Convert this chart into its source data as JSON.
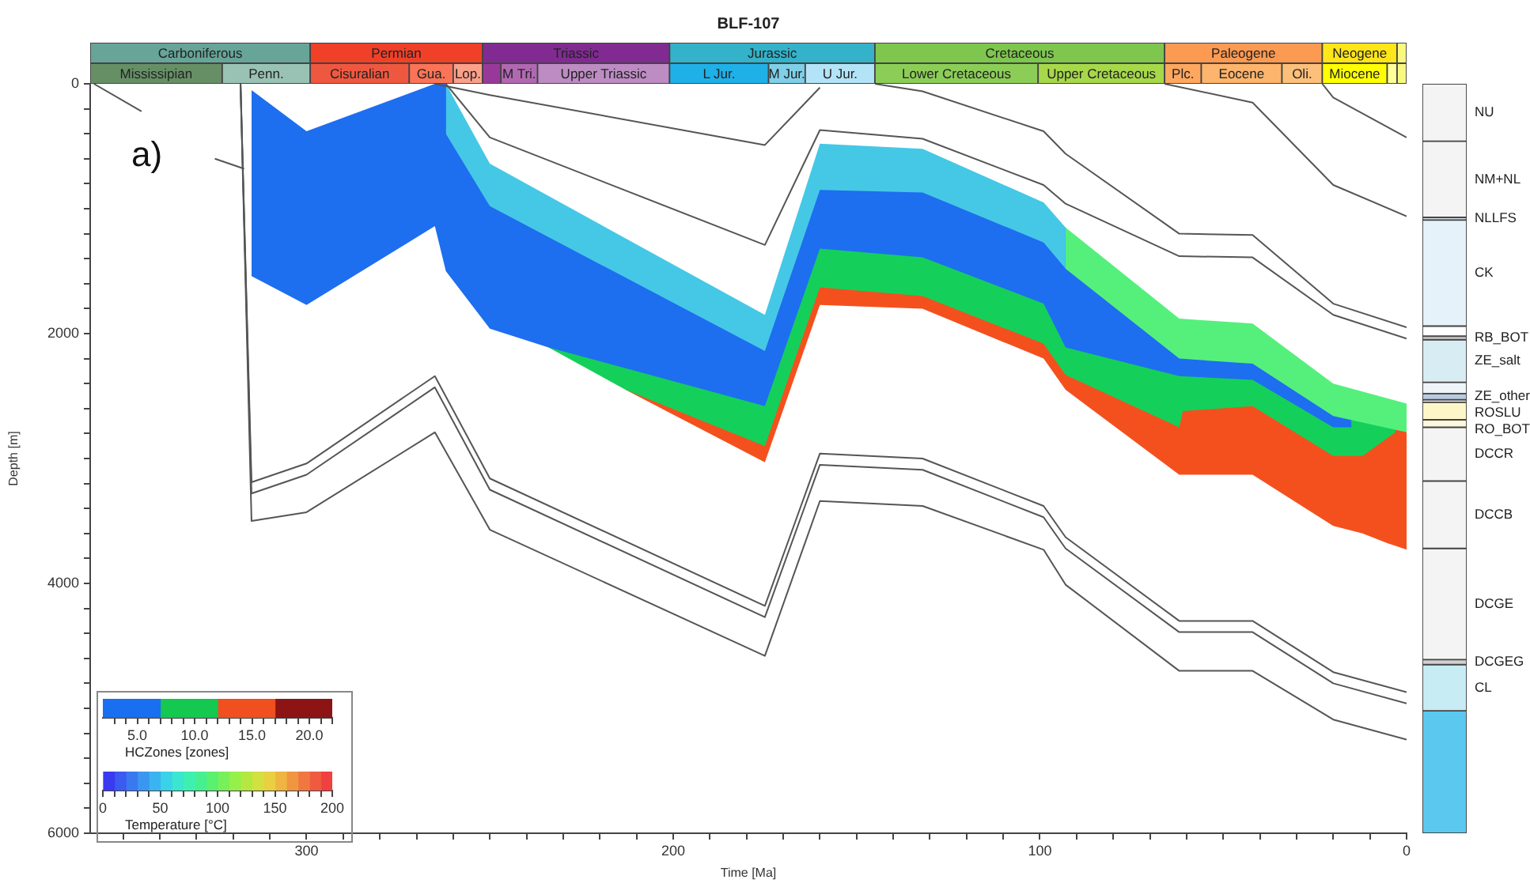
{
  "chart_data": [
    {
      "type": "bar",
      "title": "BLF-107",
      "orientation": "horizontal",
      "stacked": true,
      "categories": [
        null,
        null
      ],
      "xlim": [
        359,
        0
      ],
      "xticks": [
        300,
        200,
        100,
        0
      ],
      "tick_labels": false,
      "series": [
        {
          "color": "#f9f97f",
          "values": [
            2.6,
            null
          ]
        },
        {
          "name": "Neogene",
          "color": "#ffe619",
          "values": [
            20.4,
            null
          ]
        },
        {
          "name": "Paleogene",
          "color": "#fd9a52",
          "values": [
            43,
            null
          ]
        },
        {
          "name": "Cretaceous",
          "color": "#7fc64e",
          "values": [
            79,
            null
          ]
        },
        {
          "name": "Jurassic",
          "color": "#34b2c9",
          "values": [
            56,
            null
          ]
        },
        {
          "name": "Triassic",
          "color": "#812b92",
          "values": [
            51,
            null
          ]
        },
        {
          "name": "Permian",
          "color": "#f04028",
          "values": [
            47,
            null
          ]
        },
        {
          "name": "Carboniferous",
          "color": "#67a599",
          "values": [
            60,
            null
          ]
        },
        {
          "color": "#f9f97f",
          "values": [
            null,
            2.6
          ]
        },
        {
          "color": "#ffff99",
          "values": [
            null,
            2.7
          ]
        },
        {
          "name": "Miocene",
          "color": "#ffff00",
          "values": [
            null,
            17.7
          ]
        },
        {
          "name": "Oli.",
          "color": "#fdc07a",
          "values": [
            null,
            11
          ]
        },
        {
          "name": "Eocene",
          "color": "#fdb46c",
          "values": [
            null,
            22
          ]
        },
        {
          "name": "Plc.",
          "color": "#fda75f",
          "values": [
            null,
            10
          ]
        },
        {
          "name": "Upper Cretaceous",
          "color": "#a6d84a",
          "values": [
            null,
            34.5
          ]
        },
        {
          "name": "Lower Cretaceous",
          "color": "#8ccd57",
          "values": [
            null,
            44.5
          ]
        },
        {
          "name": "U Jur.",
          "color": "#b3e3f6",
          "values": [
            null,
            19
          ]
        },
        {
          "name": "M Jur.",
          "color": "#80cfe8",
          "values": [
            null,
            10
          ]
        },
        {
          "name": "L Jur.",
          "color": "#1fb0e8",
          "values": [
            null,
            27
          ]
        },
        {
          "name": "Upper Triassic",
          "color": "#bd8cc3",
          "values": [
            null,
            36
          ]
        },
        {
          "name": "M Tri.",
          "color": "#b168b1",
          "values": [
            null,
            10
          ]
        },
        {
          "color": "#983999",
          "values": [
            null,
            5
          ]
        },
        {
          "name": "Lop.",
          "color": "#fba08a",
          "values": [
            null,
            8
          ]
        },
        {
          "name": "Gua.",
          "color": "#fb7458",
          "values": [
            null,
            12
          ]
        },
        {
          "name": "Cisuralian",
          "color": "#ef5840",
          "values": [
            null,
            27
          ]
        },
        {
          "name": "Penn.",
          "color": "#99c2b5",
          "values": [
            null,
            24
          ]
        },
        {
          "name": "Mississipian",
          "color": "#678f66",
          "values": [
            null,
            36
          ]
        }
      ]
    },
    {
      "type": "line",
      "xlabel": "Time [Ma]",
      "ylabel": "Depth [m]",
      "annotations": [
        "a)"
      ],
      "xlim": [
        359,
        0
      ],
      "ylim": [
        6000,
        0
      ],
      "xticks": [
        {
          "value": 350,
          "label": null
        },
        {
          "value": 340,
          "label": null
        },
        {
          "value": 330,
          "label": null
        },
        {
          "value": 320,
          "label": null
        },
        {
          "value": 310,
          "label": null
        },
        300,
        {
          "value": 290,
          "label": null
        },
        {
          "value": 280,
          "label": null
        },
        {
          "value": 270,
          "label": null
        },
        {
          "value": 260,
          "label": null
        },
        {
          "value": 250,
          "label": null
        },
        {
          "value": 240,
          "label": null
        },
        {
          "value": 230,
          "label": null
        },
        {
          "value": 220,
          "label": null
        },
        {
          "value": 210,
          "label": null
        },
        200,
        {
          "value": 190,
          "label": null
        },
        {
          "value": 180,
          "label": null
        },
        {
          "value": 170,
          "label": null
        },
        {
          "value": 160,
          "label": null
        },
        {
          "value": 150,
          "label": null
        },
        {
          "value": 140,
          "label": null
        },
        {
          "value": 130,
          "label": null
        },
        {
          "value": 120,
          "label": null
        },
        {
          "value": 110,
          "label": null
        },
        100,
        {
          "value": 90,
          "label": null
        },
        {
          "value": 80,
          "label": null
        },
        {
          "value": 70,
          "label": null
        },
        {
          "value": 60,
          "label": null
        },
        {
          "value": 50,
          "label": null
        },
        {
          "value": 40,
          "label": null
        },
        {
          "value": 30,
          "label": null
        },
        {
          "value": 20,
          "label": null
        },
        {
          "value": 10,
          "label": null
        },
        0
      ],
      "yticks": [
        0,
        {
          "value": 200,
          "label": null
        },
        {
          "value": 400,
          "label": null
        },
        {
          "value": 600,
          "label": null
        },
        {
          "value": 800,
          "label": null
        },
        {
          "value": 1000,
          "label": null
        },
        {
          "value": 1200,
          "label": null
        },
        {
          "value": 1400,
          "label": null
        },
        {
          "value": 1600,
          "label": null
        },
        {
          "value": 1800,
          "label": null
        },
        2000,
        {
          "value": 2200,
          "label": null
        },
        {
          "value": 2400,
          "label": null
        },
        {
          "value": 2600,
          "label": null
        },
        {
          "value": 2800,
          "label": null
        },
        {
          "value": 3000,
          "label": null
        },
        {
          "value": 3200,
          "label": null
        },
        {
          "value": 3400,
          "label": null
        },
        {
          "value": 3600,
          "label": null
        },
        {
          "value": 3800,
          "label": null
        },
        4000,
        {
          "value": 4200,
          "label": null
        },
        {
          "value": 4400,
          "label": null
        },
        {
          "value": 4600,
          "label": null
        },
        {
          "value": 4800,
          "label": null
        },
        {
          "value": 5000,
          "label": null
        },
        {
          "value": 5200,
          "label": null
        },
        {
          "value": 5400,
          "label": null
        },
        {
          "value": 5600,
          "label": null
        },
        {
          "value": 5800,
          "label": null
        },
        6000
      ],
      "series": [
        {
          "type": "area",
          "color": "#f4501e",
          "x": [
            213,
            175,
            160,
            132,
            99,
            93,
            62,
            61,
            42,
            20,
            12,
            5,
            3,
            0
          ],
          "values": [
            2450,
            3030,
            1770,
            1800,
            2200,
            2450,
            3130,
            3130,
            3130,
            3540,
            3600,
            3680,
            3700,
            3730
          ]
        },
        {
          "type": "area",
          "color": "#14d05a",
          "x": [
            234,
            213,
            175,
            160,
            132,
            99,
            93,
            62,
            61,
            42,
            20,
            15,
            12,
            5,
            3
          ],
          "values": [
            2110,
            2450,
            2900,
            1630,
            1700,
            2080,
            2330,
            2750,
            2620,
            2580,
            2980,
            2980,
            2980,
            2830,
            2790
          ]
        },
        {
          "type": "area",
          "color": "#1e6ef0",
          "x": [
            315,
            300,
            265,
            262,
            250,
            234,
            175,
            160,
            132,
            99,
            93,
            62,
            42,
            20,
            15
          ],
          "values": [
            1540,
            1770,
            1140,
            1500,
            1960,
            2110,
            2580,
            1320,
            1390,
            1760,
            2110,
            2340,
            2370,
            2750,
            2750
          ]
        },
        {
          "type": "area",
          "color": "#45c8e6",
          "x": [
            262,
            250,
            175,
            160,
            132,
            99,
            93
          ],
          "values": [
            400,
            980,
            2140,
            850,
            870,
            1270,
            1480
          ]
        },
        {
          "type": "area",
          "color": "#55f07c",
          "x": [
            93,
            62,
            42,
            20,
            0
          ],
          "values": [
            1480,
            2200,
            2240,
            2660,
            2790
          ]
        },
        {
          "type": "area",
          "color": "#ffffff",
          "x": [
            315,
            300,
            265,
            262,
            250,
            175,
            160,
            132,
            99,
            93,
            62,
            42,
            20,
            0
          ],
          "values": [
            50,
            380,
            0,
            0,
            640,
            1850,
            480,
            520,
            950,
            1150,
            1880,
            1920,
            2400,
            2560
          ]
        },
        {
          "type": "line",
          "color": "#555555",
          "x": [
            318,
            315,
            300,
            265,
            250,
            175,
            160,
            132,
            99,
            93,
            62,
            42,
            20,
            0
          ],
          "values": [
            0,
            3190,
            3040,
            2340,
            3160,
            4180,
            2960,
            3000,
            3380,
            3630,
            4300,
            4300,
            4710,
            4870
          ]
        },
        {
          "type": "line",
          "color": "#555555",
          "x": [
            318,
            315,
            300,
            265,
            250,
            175,
            160,
            132,
            99,
            93,
            62,
            42,
            20,
            0
          ],
          "values": [
            0,
            3280,
            3130,
            2430,
            3250,
            4270,
            3050,
            3090,
            3470,
            3720,
            4390,
            4390,
            4800,
            4960
          ]
        },
        {
          "type": "line",
          "color": "#555555",
          "x": [
            318,
            315,
            300,
            265,
            250,
            175,
            160,
            132,
            99,
            93,
            62,
            42,
            20,
            0
          ],
          "values": [
            0,
            3500,
            3430,
            2790,
            3570,
            4580,
            3340,
            3380,
            3730,
            4010,
            4700,
            4700,
            5090,
            5250
          ]
        },
        {
          "type": "line",
          "color": "#555555",
          "x": [
            265,
            250,
            175,
            160
          ],
          "values": [
            0,
            90,
            490,
            30
          ]
        },
        {
          "type": "line",
          "color": "#555555",
          "x": [
            262,
            250,
            175,
            160,
            132,
            99,
            93,
            62,
            42,
            20,
            0
          ],
          "values": [
            0,
            430,
            1290,
            370,
            440,
            810,
            960,
            1380,
            1390,
            1850,
            2040
          ]
        },
        {
          "type": "line",
          "color": "#555555",
          "x": [
            145,
            132,
            99,
            93,
            62,
            42,
            20,
            0
          ],
          "values": [
            0,
            60,
            380,
            560,
            1200,
            1210,
            1760,
            1950
          ]
        },
        {
          "type": "line",
          "color": "#555555",
          "x": [
            66,
            42,
            20,
            0
          ],
          "values": [
            0,
            150,
            810,
            1060
          ]
        },
        {
          "type": "line",
          "color": "#555555",
          "x": [
            23,
            20,
            0
          ],
          "values": [
            0,
            110,
            430
          ]
        },
        {
          "type": "line",
          "color": "#555555",
          "x": [
            358,
            345
          ],
          "values": [
            0,
            220
          ]
        },
        {
          "type": "line",
          "color": "#555555",
          "x": [
            325,
            317
          ],
          "values": [
            600,
            680
          ]
        }
      ]
    },
    {
      "type": "bar",
      "stacked": true,
      "categories": [
        null
      ],
      "ylim": [
        6000,
        0
      ],
      "yticks": [
        0,
        2000,
        4000,
        6000
      ],
      "tick_labels": false,
      "series": [
        {
          "name": "NU",
          "color": "#f4f4f4",
          "values": [
            460
          ]
        },
        {
          "name": "NM+NL",
          "color": "#f4f4f4",
          "values": [
            610
          ]
        },
        {
          "name": "NLLFS",
          "color": "#dde6ee",
          "values": [
            20
          ]
        },
        {
          "name": "CK",
          "color": "#e6f2fa",
          "values": [
            850
          ]
        },
        {
          "color": "#ffffff",
          "values": [
            80
          ]
        },
        {
          "name": "RB_BOT",
          "color": "#b8b8b8",
          "values": [
            30
          ]
        },
        {
          "name": "ZE_salt",
          "color": "#d8ecf4",
          "values": [
            340
          ]
        },
        {
          "color": "#eef4f8",
          "values": [
            90
          ]
        },
        {
          "name": "ZE_other",
          "color": "#b8cce0",
          "values": [
            50
          ]
        },
        {
          "color": "#f4f4f4",
          "values": [
            20
          ]
        },
        {
          "name": "ROSLU",
          "color": "#fdf6c8",
          "values": [
            140
          ]
        },
        {
          "name": "RO_BOT",
          "color": "#fdf8dc",
          "values": [
            60
          ]
        },
        {
          "name": "DCCR",
          "color": "#f4f4f4",
          "values": [
            430
          ]
        },
        {
          "name": "DCCB",
          "color": "#f4f4f4",
          "values": [
            540
          ]
        },
        {
          "name": "DCGE",
          "color": "#f4f4f4",
          "values": [
            890
          ]
        },
        {
          "name": "DCGEG",
          "color": "#d0d0d0",
          "values": [
            40
          ]
        },
        {
          "name": "CL",
          "color": "#c8ecf4",
          "values": [
            370
          ]
        },
        {
          "color": "#5bc8f0",
          "values": [
            980
          ]
        }
      ]
    },
    {
      "type": "bar",
      "orientation": "horizontal",
      "categories": [
        null
      ],
      "xlabel": "HCZones [zones]",
      "xlim": [
        2,
        22
      ],
      "tick_labels": "x",
      "series": [
        {
          "color": "#1a6ef0",
          "base": [
            2
          ],
          "values": [
            5
          ]
        },
        {
          "color": "#14c850",
          "base": [
            7
          ],
          "values": [
            5
          ]
        },
        {
          "color": "#f05020",
          "base": [
            12
          ],
          "values": [
            5
          ]
        },
        {
          "color": "#8c1414",
          "base": [
            17
          ],
          "values": [
            5
          ]
        }
      ],
      "xticks": [
        {
          "value": 3,
          "label": null
        },
        {
          "value": 4,
          "label": null
        },
        {
          "value": 5,
          "label": "5.0"
        },
        {
          "value": 6,
          "label": null
        },
        {
          "value": 7,
          "label": null
        },
        {
          "value": 8,
          "label": null
        },
        {
          "value": 9,
          "label": null
        },
        {
          "value": 10,
          "label": "10.0"
        },
        {
          "value": 11,
          "label": null
        },
        {
          "value": 12,
          "label": null
        },
        {
          "value": 13,
          "label": null
        },
        {
          "value": 14,
          "label": null
        },
        {
          "value": 15,
          "label": "15.0"
        },
        {
          "value": 16,
          "label": null
        },
        {
          "value": 17,
          "label": null
        },
        {
          "value": 18,
          "label": null
        },
        {
          "value": 19,
          "label": null
        },
        {
          "value": 20,
          "label": "20.0"
        },
        {
          "value": 21,
          "label": null
        },
        {
          "value": 22,
          "label": null
        }
      ]
    },
    {
      "type": "bar",
      "orientation": "horizontal",
      "stacked": true,
      "categories": [
        null
      ],
      "xlabel": "Temperature [°C]",
      "xlim": [
        0,
        200
      ],
      "tick_labels": "x",
      "series": [
        {
          "color": "#3a3af0",
          "values": [
            10
          ]
        },
        {
          "color": "#3a5af0",
          "values": [
            10
          ]
        },
        {
          "color": "#3a78f0",
          "values": [
            10
          ]
        },
        {
          "color": "#3a96f0",
          "values": [
            10
          ]
        },
        {
          "color": "#3ab4f0",
          "values": [
            10
          ]
        },
        {
          "color": "#3ad2e8",
          "values": [
            10
          ]
        },
        {
          "color": "#3ae6d0",
          "values": [
            10
          ]
        },
        {
          "color": "#3ef0b0",
          "values": [
            10
          ]
        },
        {
          "color": "#46f090",
          "values": [
            10
          ]
        },
        {
          "color": "#5af070",
          "values": [
            10
          ]
        },
        {
          "color": "#78f05a",
          "values": [
            10
          ]
        },
        {
          "color": "#96f04a",
          "values": [
            10
          ]
        },
        {
          "color": "#b4e840",
          "values": [
            10
          ]
        },
        {
          "color": "#d2e040",
          "values": [
            10
          ]
        },
        {
          "color": "#e8d040",
          "values": [
            10
          ]
        },
        {
          "color": "#f0b440",
          "values": [
            10
          ]
        },
        {
          "color": "#f09640",
          "values": [
            10
          ]
        },
        {
          "color": "#f07840",
          "values": [
            10
          ]
        },
        {
          "color": "#f05a40",
          "values": [
            10
          ]
        },
        {
          "color": "#f04040",
          "values": [
            10
          ]
        }
      ],
      "xticks": [
        0,
        {
          "value": 10,
          "label": null
        },
        {
          "value": 20,
          "label": null
        },
        {
          "value": 30,
          "label": null
        },
        {
          "value": 40,
          "label": null
        },
        50,
        {
          "value": 60,
          "label": null
        },
        {
          "value": 70,
          "label": null
        },
        {
          "value": 80,
          "label": null
        },
        {
          "value": 90,
          "label": null
        },
        100,
        {
          "value": 110,
          "label": null
        },
        {
          "value": 120,
          "label": null
        },
        {
          "value": 130,
          "label": null
        },
        {
          "value": 140,
          "label": null
        },
        150,
        {
          "value": 160,
          "label": null
        },
        {
          "value": 170,
          "label": null
        },
        {
          "value": 180,
          "label": null
        },
        {
          "value": 190,
          "label": null
        },
        200
      ]
    }
  ]
}
